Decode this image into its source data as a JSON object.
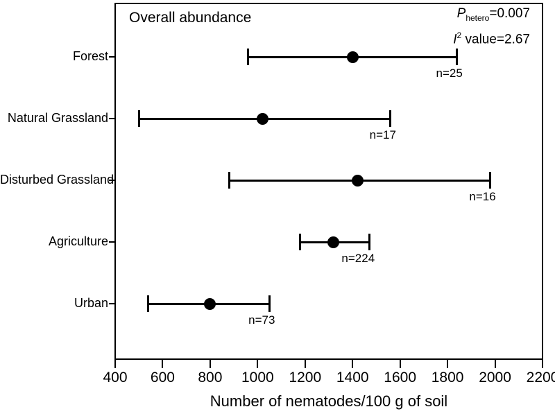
{
  "chart_data": {
    "type": "scatter",
    "subtype": "horizontal-error-bar-forest-plot",
    "title": "Overall abundance",
    "stats": {
      "p_symbol": "P",
      "p_subscript": "hetero",
      "p_value_text": "=0.007",
      "i_symbol": "I",
      "i_superscript": "2",
      "i_value_text": " value=2.67"
    },
    "xlabel": "Number of nematodes/100 g of soil",
    "xlim": [
      400,
      2200
    ],
    "xticks": [
      400,
      600,
      800,
      1000,
      1200,
      1400,
      1600,
      1800,
      2000,
      2200
    ],
    "grid": false,
    "legend": "none",
    "marker_color": "#000000",
    "background_color": "#ffffff",
    "categories": [
      "Forest",
      "Natural Grassland",
      "Disturbed Grassland",
      "Agriculture",
      "Urban"
    ],
    "series": [
      {
        "name": "Overall abundance",
        "points": [
          {
            "category": "Forest",
            "mean": 1400,
            "ci_low": 960,
            "ci_high": 1840,
            "n": 25,
            "n_label": "n=25"
          },
          {
            "category": "Natural Grassland",
            "mean": 1020,
            "ci_low": 500,
            "ci_high": 1560,
            "n": 17,
            "n_label": "n=17"
          },
          {
            "category": "Disturbed Grassland",
            "mean": 1420,
            "ci_low": 880,
            "ci_high": 1980,
            "n": 16,
            "n_label": "n=16"
          },
          {
            "category": "Agriculture",
            "mean": 1320,
            "ci_low": 1180,
            "ci_high": 1470,
            "n": 224,
            "n_label": "n=224"
          },
          {
            "category": "Urban",
            "mean": 800,
            "ci_low": 540,
            "ci_high": 1050,
            "n": 73,
            "n_label": "n=73"
          }
        ]
      }
    ]
  }
}
